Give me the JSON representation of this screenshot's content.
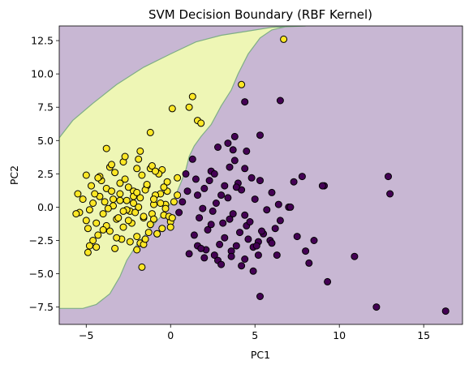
{
  "chart_data": {
    "type": "scatter",
    "title": "SVM Decision Boundary (RBF Kernel)",
    "xlabel": "PC1",
    "ylabel": "PC2",
    "xlim": [
      -6.6,
      17.3
    ],
    "ylim": [
      -8.8,
      13.6
    ],
    "xticks": [
      -5,
      0,
      5,
      10,
      15
    ],
    "xtick_labels": [
      "−5",
      "0",
      "5",
      "10",
      "15"
    ],
    "yticks": [
      -7.5,
      -5.0,
      -2.5,
      0.0,
      2.5,
      5.0,
      7.5,
      10.0,
      12.5
    ],
    "ytick_labels": [
      "−7.5",
      "−5.0",
      "−2.5",
      "0.0",
      "2.5",
      "5.0",
      "7.5",
      "10.0",
      "12.5"
    ],
    "grid": false,
    "colors": {
      "class_yellow_region": "#eef6b5",
      "class_purple_region": "#c8b7d3",
      "boundary": "#7fae86",
      "class_yellow_point": "#fde725",
      "class_purple_point": "#440154",
      "edge": "#000000"
    },
    "decision_region_yellow": [
      [
        -6.6,
        5.2
      ],
      [
        -5.8,
        6.5
      ],
      [
        -4.6,
        7.8
      ],
      [
        -3.2,
        9.2
      ],
      [
        -1.6,
        10.5
      ],
      [
        0.0,
        11.5
      ],
      [
        1.5,
        12.4
      ],
      [
        3.0,
        12.9
      ],
      [
        4.5,
        13.2
      ],
      [
        6.0,
        13.5
      ],
      [
        8.0,
        13.6
      ],
      [
        8.0,
        13.6
      ],
      [
        7.0,
        13.6
      ],
      [
        6.0,
        13.3
      ],
      [
        5.3,
        12.7
      ],
      [
        4.6,
        11.5
      ],
      [
        4.0,
        10.0
      ],
      [
        3.6,
        8.8
      ],
      [
        3.0,
        7.6
      ],
      [
        2.4,
        6.2
      ],
      [
        1.8,
        5.3
      ],
      [
        1.4,
        4.6
      ],
      [
        1.1,
        3.8
      ],
      [
        0.9,
        2.8
      ],
      [
        0.6,
        1.8
      ],
      [
        0.2,
        0.6
      ],
      [
        -0.5,
        -0.6
      ],
      [
        -1.2,
        -1.6
      ],
      [
        -2.0,
        -2.8
      ],
      [
        -2.6,
        -4.0
      ],
      [
        -3.0,
        -5.2
      ],
      [
        -3.6,
        -6.5
      ],
      [
        -4.4,
        -7.3
      ],
      [
        -5.2,
        -7.6
      ],
      [
        -6.6,
        -7.6
      ]
    ],
    "series": [
      {
        "label_class": 1,
        "color": "#fde725",
        "x": [
          -5.4,
          -5.2,
          -5.0,
          -4.8,
          -4.6,
          -4.4,
          -4.2,
          -4.0,
          -3.8,
          -3.6,
          -3.4,
          -3.2,
          -3.0,
          -2.8,
          -2.6,
          -2.4,
          -2.2,
          -2.0,
          -1.8,
          -1.6,
          -1.4,
          -1.2,
          -1.0,
          -0.8,
          -0.6,
          -0.4,
          -0.2,
          0.0,
          0.2,
          0.4,
          -4.9,
          -4.5,
          -4.1,
          -3.7,
          -3.3,
          -2.9,
          -2.5,
          -2.1,
          -1.7,
          -1.3,
          -0.9,
          -0.5,
          -0.1,
          -4.7,
          -4.3,
          -3.9,
          -3.5,
          -3.1,
          -2.7,
          -2.3,
          -1.9,
          -1.5,
          -1.1,
          -0.7,
          -0.3,
          -4.6,
          -4.2,
          -3.8,
          -3.4,
          -3.0,
          -2.6,
          -2.2,
          -1.8,
          -1.4,
          -1.0,
          -0.6,
          -0.2,
          -5.0,
          -4.4,
          -3.6,
          -2.8,
          -2.0,
          -1.2,
          -0.4,
          -4.8,
          -4.0,
          -3.2,
          -2.4,
          -1.6,
          -0.8,
          0.0,
          -3.5,
          -2.7,
          -1.9,
          -1.1,
          -0.3,
          -2.5,
          -1.5,
          -0.5,
          -3.0,
          -2.0,
          -1.0,
          -1.2,
          -1.7,
          0.1,
          1.1,
          1.3,
          1.6,
          1.8,
          4.2,
          6.7,
          -1.8,
          -2.0,
          -0.9,
          -2.2,
          -3.8,
          -4.3,
          0.4,
          0.1,
          -5.6,
          -5.5,
          -4.9,
          -3.3,
          -2.8,
          -1.6
        ],
        "y": [
          -0.4,
          0.6,
          -1.0,
          -0.2,
          0.3,
          -1.2,
          0.8,
          -0.5,
          1.4,
          -1.8,
          0.1,
          -0.9,
          1.8,
          -1.5,
          0.5,
          -0.3,
          1.2,
          -2.2,
          0.7,
          -0.8,
          1.6,
          -1.3,
          0.2,
          -2.0,
          1.0,
          -0.6,
          1.9,
          -1.1,
          0.4,
          2.2,
          -1.6,
          1.0,
          2.0,
          -0.1,
          2.6,
          -2.4,
          1.5,
          -0.4,
          2.4,
          -1.9,
          0.9,
          2.8,
          -0.7,
          1.6,
          -2.1,
          0.4,
          1.2,
          -0.8,
          2.1,
          -1.2,
          0.0,
          1.3,
          -0.5,
          2.5,
          0.2,
          -2.5,
          2.3,
          -1.4,
          0.6,
          1.0,
          -0.2,
          0.8,
          -2.7,
          1.7,
          -0.9,
          0.3,
          1.2,
          2.4,
          -3.0,
          3.0,
          3.4,
          -3.2,
          2.9,
          1.5,
          -2.9,
          -1.7,
          -2.3,
          -2.6,
          -2.8,
          -2.0,
          -1.5,
          3.2,
          3.8,
          3.6,
          3.1,
          -0.1,
          -1.0,
          -2.4,
          -1.6,
          0.5,
          1.1,
          0.6,
          5.6,
          -4.5,
          7.4,
          7.5,
          8.3,
          6.5,
          6.3,
          9.2,
          12.6,
          4.2,
          2.9,
          2.7,
          0.3,
          4.4,
          2.2,
          0.9,
          -0.8,
          -0.5,
          1.0,
          -3.4,
          -3.1,
          -0.3,
          -0.7
        ]
      },
      {
        "label_class": 0,
        "color": "#440154",
        "x": [
          16.3,
          12.2,
          12.9,
          13.0,
          10.9,
          9.3,
          9.1,
          9.0,
          8.2,
          8.0,
          7.8,
          7.3,
          6.5,
          5.3,
          5.3,
          4.4,
          4.5,
          3.8,
          3.8,
          3.4,
          3.5,
          2.8,
          2.4,
          1.6,
          1.3,
          0.9,
          1.0,
          0.5,
          0.7,
          1.5,
          2.0,
          2.5,
          3.0,
          3.5,
          4.0,
          4.5,
          5.0,
          5.5,
          6.0,
          6.5,
          7.0,
          7.5,
          1.7,
          2.2,
          2.7,
          3.2,
          3.7,
          4.2,
          4.7,
          5.2,
          5.7,
          6.2,
          1.4,
          1.9,
          2.4,
          2.9,
          3.4,
          3.9,
          4.4,
          4.9,
          5.4,
          5.9,
          6.4,
          1.1,
          1.6,
          2.1,
          2.6,
          3.1,
          3.6,
          4.1,
          4.6,
          5.1,
          2.0,
          2.8,
          3.6,
          4.4,
          5.2,
          6.0,
          1.8,
          3.0,
          4.2,
          4.9,
          5.3,
          6.3,
          7.1,
          8.5,
          3.2,
          4.4,
          3.7,
          2.6,
          2.3,
          4.8,
          3.9
        ],
        "y": [
          -7.8,
          -7.5,
          2.3,
          1.0,
          -3.7,
          -5.6,
          1.6,
          1.6,
          -4.2,
          -3.3,
          2.3,
          1.9,
          8.0,
          5.4,
          2.0,
          7.9,
          4.2,
          5.3,
          3.5,
          4.8,
          3.0,
          4.5,
          2.7,
          0.9,
          3.6,
          2.5,
          1.2,
          -0.4,
          0.4,
          2.1,
          1.4,
          -0.3,
          0.9,
          -0.9,
          1.8,
          -1.4,
          0.6,
          -2.0,
          1.1,
          -1.0,
          0.0,
          -2.2,
          -0.8,
          -1.7,
          0.3,
          -2.3,
          -0.5,
          1.3,
          -1.1,
          -2.6,
          -0.2,
          -1.6,
          -2.1,
          -0.1,
          -1.3,
          -2.8,
          0.7,
          -2.9,
          -0.6,
          -3.0,
          -1.8,
          -2.5,
          0.2,
          -3.5,
          -2.9,
          -3.2,
          -3.6,
          -1.2,
          -3.3,
          -1.9,
          -2.4,
          -2.9,
          -3.8,
          -4.0,
          -3.7,
          -3.9,
          -3.6,
          -2.7,
          -3.1,
          -4.3,
          -4.4,
          -4.8,
          -6.7,
          -3.6,
          0.0,
          -2.5,
          1.6,
          2.9,
          4.3,
          2.5,
          2.0,
          2.2,
          1.5
        ]
      }
    ]
  }
}
